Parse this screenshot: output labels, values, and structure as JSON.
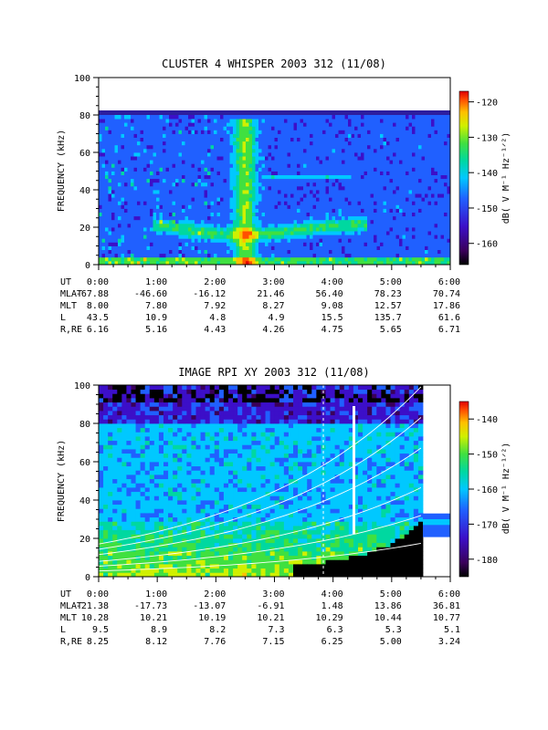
{
  "chart_data": [
    {
      "type": "heatmap",
      "title": "CLUSTER 4 WHISPER 2003 312 (11/08)",
      "ylabel": "FREQUENCY (kHz)",
      "ylim": [
        0,
        100
      ],
      "yticks": [
        "0",
        "20",
        "40",
        "60",
        "80",
        "100"
      ],
      "xlim": [
        "0:00",
        "6:00"
      ],
      "colorbar": {
        "label": "dB( V M⁻¹ Hz⁻¹ᐟ²)",
        "range": [
          -166,
          -117
        ],
        "ticks": [
          "-160",
          "-150",
          "-140",
          "-130",
          "-120"
        ]
      },
      "data_extent_khz": 80,
      "ephemeris": [
        {
          "label": "UT",
          "values": [
            "0:00",
            "1:00",
            "2:00",
            "3:00",
            "4:00",
            "5:00",
            "6:00"
          ]
        },
        {
          "label": "MLAT",
          "values": [
            "-67.88",
            "-46.60",
            "-16.12",
            "21.46",
            "56.40",
            "78.23",
            "70.74"
          ]
        },
        {
          "label": "MLT",
          "values": [
            "8.00",
            "7.80",
            "7.92",
            "8.27",
            "9.08",
            "12.57",
            "17.86"
          ]
        },
        {
          "label": "L",
          "values": [
            "43.5",
            "10.9",
            "4.8",
            "4.9",
            "15.5",
            "135.7",
            "61.6"
          ]
        },
        {
          "label": "R,RE",
          "values": [
            "6.16",
            "5.16",
            "4.43",
            "4.26",
            "4.75",
            "5.65",
            "6.71"
          ]
        }
      ]
    },
    {
      "type": "heatmap",
      "title": "IMAGE RPI XY 2003 312 (11/08)",
      "ylabel": "FREQUENCY (kHz)",
      "ylim": [
        0,
        100
      ],
      "yticks": [
        "0",
        "20",
        "40",
        "60",
        "80",
        "100"
      ],
      "xlim": [
        "0:00",
        "6:00"
      ],
      "colorbar": {
        "label": "dB( V M⁻¹ Hz⁻¹ᐟ²)",
        "range": [
          -185,
          -135
        ],
        "ticks": [
          "-180",
          "-170",
          "-160",
          "-150",
          "-140"
        ]
      },
      "ephemeris": [
        {
          "label": "UT",
          "values": [
            "0:00",
            "1:00",
            "2:00",
            "3:00",
            "4:00",
            "5:00",
            "6:00"
          ]
        },
        {
          "label": "MLAT",
          "values": [
            "-21.38",
            "-17.73",
            "-13.07",
            "-6.91",
            "1.48",
            "13.86",
            "36.81"
          ]
        },
        {
          "label": "MLT",
          "values": [
            "10.28",
            "10.21",
            "10.19",
            "10.21",
            "10.29",
            "10.44",
            "10.77"
          ]
        },
        {
          "label": "L",
          "values": [
            "9.5",
            "8.9",
            "8.2",
            "7.3",
            "6.3",
            "5.3",
            "5.1"
          ]
        },
        {
          "label": "R,RE",
          "values": [
            "8.25",
            "8.12",
            "7.76",
            "7.15",
            "6.25",
            "5.00",
            "3.24"
          ]
        }
      ]
    }
  ]
}
